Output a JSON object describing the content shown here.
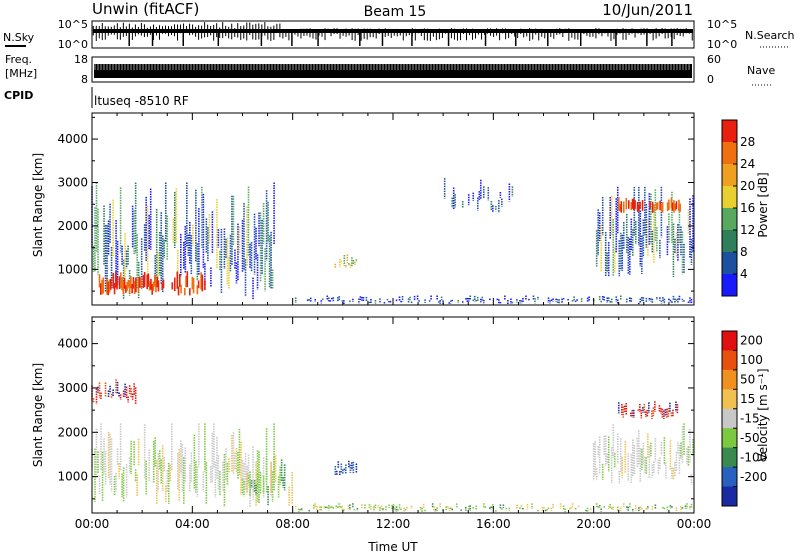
{
  "header": {
    "station": "Unwin (fitACF)",
    "beam": "Beam 15",
    "date": "10/Jun/2011"
  },
  "strips": {
    "nsky_label": "N.Sky",
    "nsky_tick_hi": "10^5",
    "nsky_tick_lo": "10^0",
    "nsearch_label": "N.Search",
    "nsearch_tick_hi": "10^5",
    "nsearch_tick_lo": "10^0",
    "freq_label_1": "Freq.",
    "freq_label_2": "[MHz]",
    "freq_tick_hi": "18",
    "freq_tick_lo": "8",
    "nave_label": "Nave",
    "nave_tick_hi": "60",
    "nave_tick_lo": "0",
    "cpid_label": "CPID",
    "cpid_value": "ltuseq -8510 RF"
  },
  "chart_data": [
    {
      "type": "heatmap",
      "name": "power",
      "ylabel": "Slant Range [km]",
      "xlabel": "Time UT",
      "xlim": [
        "00:00",
        "24:00"
      ],
      "ylim": [
        180,
        4600
      ],
      "yticks": [
        "1000",
        "2000",
        "3000",
        "4000"
      ],
      "xticks": [
        "00:00",
        "04:00",
        "08:00",
        "12:00",
        "16:00",
        "20:00",
        "00:00"
      ],
      "colorbar": {
        "label": "Power [dB]",
        "ticks": [
          "4",
          "8",
          "12",
          "16",
          "20",
          "24",
          "28"
        ],
        "colors": [
          "#1a1aff",
          "#1e50a0",
          "#2e7f5a",
          "#58a860",
          "#e8d030",
          "#f0a020",
          "#f07010",
          "#e82010"
        ]
      },
      "regions": [
        {
          "t0": 0.0,
          "t1": 7.3,
          "r0": 300,
          "r1": 3000,
          "level": "mixed",
          "note": "strong near-range echoes, red near 600 km"
        },
        {
          "t0": 9.7,
          "t1": 10.6,
          "r0": 1000,
          "r1": 1400,
          "level": "mid"
        },
        {
          "t0": 8.0,
          "t1": 24.0,
          "r0": 200,
          "r1": 400,
          "level": "weak"
        },
        {
          "t0": 14.0,
          "t1": 16.8,
          "r0": 2300,
          "r1": 3100,
          "level": "weak"
        },
        {
          "t0": 20.0,
          "t1": 24.0,
          "r0": 800,
          "r1": 2900,
          "level": "mixed",
          "note": "red/orange near 2400 km"
        }
      ]
    },
    {
      "type": "heatmap",
      "name": "velocity",
      "ylabel": "Slant Range [km]",
      "xlabel": "Time UT",
      "xlim": [
        "00:00",
        "24:00"
      ],
      "ylim": [
        180,
        4600
      ],
      "yticks": [
        "1000",
        "2000",
        "3000",
        "4000"
      ],
      "xticks": [
        "00:00",
        "04:00",
        "08:00",
        "12:00",
        "16:00",
        "20:00",
        "00:00"
      ],
      "colorbar": {
        "label": "Velocity [m s⁻¹]",
        "ticks": [
          "200",
          "100",
          "50",
          "15",
          "-15",
          "-50",
          "-100",
          "-200"
        ],
        "colors": [
          "#1a2aa0",
          "#2a60c0",
          "#3a8a50",
          "#7cc840",
          "#c8c8c8",
          "#f0c050",
          "#f09020",
          "#e85010",
          "#e01010"
        ]
      },
      "regions": [
        {
          "t0": 0.0,
          "t1": 7.3,
          "r0": 300,
          "r1": 2200,
          "level": "gray",
          "note": "near-zero velocity, patchy orange/blue"
        },
        {
          "t0": 0.0,
          "t1": 1.8,
          "r0": 2600,
          "r1": 3200,
          "level": "red"
        },
        {
          "t0": 6.0,
          "t1": 8.0,
          "r0": 300,
          "r1": 1500,
          "level": "green"
        },
        {
          "t0": 9.7,
          "t1": 10.6,
          "r0": 1000,
          "r1": 1400,
          "level": "blue"
        },
        {
          "t0": 8.0,
          "t1": 24.0,
          "r0": 200,
          "r1": 400,
          "level": "green",
          "note": "orange near 8-10 UT"
        },
        {
          "t0": 20.0,
          "t1": 24.0,
          "r0": 800,
          "r1": 2200,
          "level": "gray"
        },
        {
          "t0": 21.0,
          "t1": 23.5,
          "r0": 2300,
          "r1": 2700,
          "level": "red"
        }
      ]
    }
  ]
}
